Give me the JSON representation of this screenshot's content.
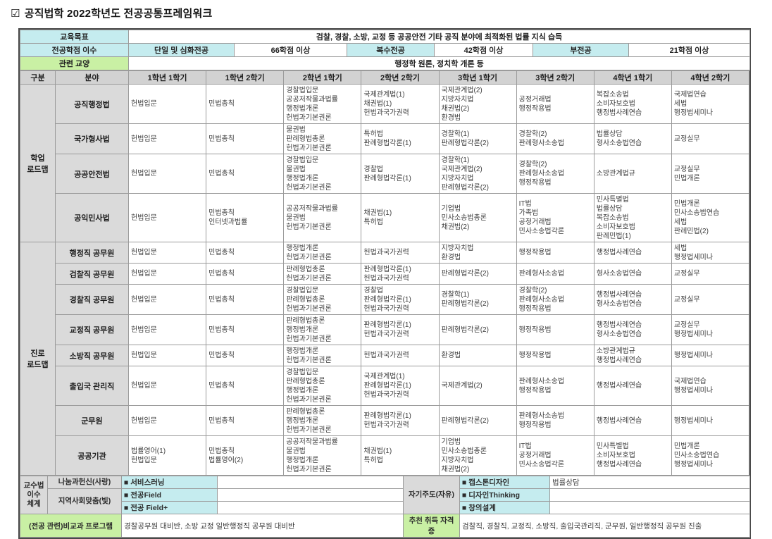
{
  "title": {
    "icon": "☑",
    "text": "공직법학 2022학년도 전공공통프레임워크"
  },
  "colors": {
    "teal": "#c5ecef",
    "green": "#c9f0a4",
    "header_gray": "#d2d2d2",
    "label_gray": "#dadada",
    "border": "#9b9b9b"
  },
  "top": {
    "edu_goal": {
      "label": "교육목표",
      "value": "검찰, 경찰, 소방, 교정 등 공공안전 기타 공직 분야에 최적화된 법률 지식 습득"
    },
    "credits": {
      "label": "전공학점 이수",
      "cells": [
        {
          "text": "단일 및 심화전공"
        },
        {
          "text": "66학점 이상"
        },
        {
          "text": "복수전공"
        },
        {
          "text": "42학점 이상"
        },
        {
          "text": "부전공"
        },
        {
          "text": "21학점 이상"
        }
      ]
    },
    "liberal": {
      "label": "관련 교양",
      "value": "행정학 원론, 정치학 개론 등"
    }
  },
  "header_cols": [
    "구분",
    "분야",
    "1학년 1학기",
    "1학년 2학기",
    "2학년 1학기",
    "2학년 2학기",
    "3학년 1학기",
    "3학년 2학기",
    "4학년 1학기",
    "4학년 2학기"
  ],
  "sections": [
    {
      "group": "학업\n로드맵",
      "rows": [
        {
          "field": "공직행정법",
          "cells": [
            "헌법입문",
            "민법총칙",
            "경찰법입문\n공공저작물과법률\n행정법개론\n헌법과기본권론",
            "국제관계법(1)\n채권법(1)\n헌법과국가권력",
            "국제관계법(2)\n지방자치법\n채권법(2)\n환경법",
            "공정거래법\n행정작용법",
            "복잡소송법\n소비자보호법\n행정법사례연습",
            "국제법연습\n세법\n행정법세미나"
          ]
        },
        {
          "field": "국가형사법",
          "cells": [
            "헌법입문",
            "민법총칙",
            "물권법\n판례형법총론\n헌법과기본권론",
            "특허법\n판례형법각론(1)",
            "경찰학(1)\n판례형법각론(2)",
            "경찰학(2)\n판례형사소송법",
            "법률상담\n형사소송법연습",
            "교정실무"
          ]
        },
        {
          "field": "공공안전법",
          "cells": [
            "헌법입문",
            "민법총칙",
            "경찰법입문\n물권법\n행정법개론\n헌법과기본권론",
            "경찰법\n판례형법각론(1)",
            "경찰학(1)\n국제관계법(2)\n지방자치법\n판례형법각론(2)",
            "경찰학(2)\n판례형사소송법\n행정작용법",
            "소방관계법규",
            "교정실무\n민법개론"
          ]
        },
        {
          "field": "공익민사법",
          "cells": [
            "헌법입문",
            "민법총칙\n인터넷과법률",
            "공공저작물과법률\n물권법\n헌법과기본권론",
            "채권법(1)\n특허법",
            "기업법\n민사소송법총론\n채권법(2)",
            "IT법\n가족법\n공정거래법\n민사소송법각론",
            "민사특별법\n법률상담\n복잡소송법\n소비자보호법\n판례민법(1)",
            "민법개론\n민사소송법연습\n세법\n판례민법(2)"
          ]
        }
      ]
    },
    {
      "group": "진로\n로드맵",
      "rows": [
        {
          "field": "행정직 공무원",
          "cells": [
            "헌법입문",
            "민법총칙",
            "행정법개론\n헌법과기본권론",
            "헌법과국가권력",
            "지방자치법\n환경법",
            "행정작용법",
            "행정법사례연습",
            "세법\n행정법세미나"
          ]
        },
        {
          "field": "검찰직 공무원",
          "cells": [
            "헌법입문",
            "민법총칙",
            "판례형법총론\n헌법과기본권론",
            "판례형법각론(1)\n헌법과국가권력",
            "판례형법각론(2)",
            "판례형사소송법",
            "형사소송법연습",
            "교정실무"
          ]
        },
        {
          "field": "경찰직 공무원",
          "cells": [
            "헌법입문",
            "민법총칙",
            "경찰법입문\n판례형법총론\n헌법과기본권론",
            "경찰법\n판례형법각론(1)\n헌법과국가권력",
            "경찰학(1)\n판례형법각론(2)",
            "경찰학(2)\n판례형사소송법\n행정작용법",
            "행정법사례연습\n형사소송법연습",
            "교정실무"
          ]
        },
        {
          "field": "교정직 공무원",
          "cells": [
            "헌법입문",
            "민법총칙",
            "판례형법총론\n행정법개론\n헌법과기본권론",
            "판례형법각론(1)\n헌법과국가권력",
            "판례형법각론(2)",
            "행정작용법",
            "행정법사례연습\n형사소송법연습",
            "교정실무\n행정법세미나"
          ]
        },
        {
          "field": "소방직 공무원",
          "cells": [
            "헌법입문",
            "민법총칙",
            "행정법개론\n헌법과기본권론",
            "헌법과국가권력",
            "환경법",
            "행정작용법",
            "소방관계법규\n행정법사례연습",
            "행정법세미나"
          ]
        },
        {
          "field": "출입국 관리직",
          "cells": [
            "헌법입문",
            "민법총칙",
            "경찰법입문\n판례형법총론\n행정법개론\n헌법과기본권론",
            "국제관계법(1)\n판례형법각론(1)\n헌법과국가권력",
            "국제관계법(2)",
            "판례형사소송법\n행정작용법",
            "행정법사례연습",
            "국제법연습\n행정법세미나"
          ]
        },
        {
          "field": "군무원",
          "cells": [
            "헌법입문",
            "민법총칙",
            "판례형법총론\n행정법개론\n헌법과기본권론",
            "판례형법각론(1)\n헌법과국가권력",
            "판례형법각론(2)",
            "판례형사소송법\n행정작용법",
            "행정법사례연습",
            "행정법세미나"
          ]
        },
        {
          "field": "공공기관",
          "cells": [
            "법률영어(1)\n헌법입문",
            "민법총칙\n법률영어(2)",
            "공공저작물과법률\n물권법\n행정법개론\n헌법과기본권론",
            "채권법(1)\n특허법",
            "기업법\n민사소송법총론\n지방자치법\n채권법(2)",
            "IT법\n공정거래법\n민사소송법각론",
            "민사특별법\n소비자보호법\n행정법사례연습",
            "민법개론\n민사소송법연습\n행정법세미나"
          ]
        }
      ]
    }
  ],
  "footer": {
    "system_label": "교수법\n이수\n체계",
    "sharing_label": "나눔과헌신(사랑)",
    "service_learning": "■  서비스러닝",
    "community_label": "지역사회맞춤(빛)",
    "major_field": "■  전공Field",
    "major_field_plus": "■  전공 Field+",
    "self_directed_label": "자기주도(자유)",
    "capstone": "■  캡스톤디자인",
    "design_thinking": "■  디자인Thinking",
    "creative_design": "■  창의설계",
    "legal_counsel": "법률상담",
    "extracurricular": {
      "label": "(전공 관련)비교과 프로그램",
      "value": "경찰공무원 대비반, 소방 교정 일반행정직 공무원 대비반"
    },
    "certificates": {
      "label": "추천 취득 자격증",
      "value": "검찰직, 경찰직, 교정직, 소방직, 출입국관리직, 군무원, 일반행정직 공무원 진출"
    }
  }
}
